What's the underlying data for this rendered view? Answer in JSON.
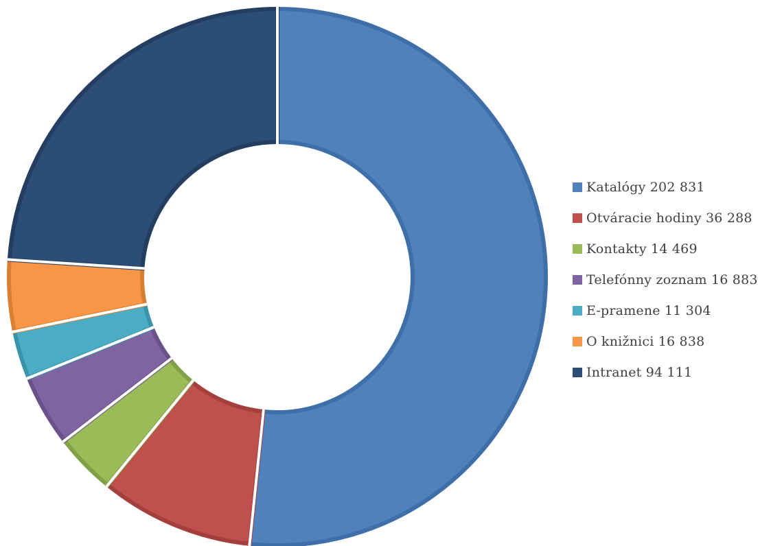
{
  "chart_data": {
    "type": "donut",
    "title": "",
    "legend_position": "right",
    "series": [
      {
        "name": "",
        "points": [
          {
            "label": "Katalógy 202 831",
            "category": "Katalógy",
            "value": 202831,
            "color": "#4F81BD",
            "edge": "#3F6FA8"
          },
          {
            "label": "Otváracie hodiny 36 288",
            "category": "Otváracie hodiny",
            "value": 36288,
            "color": "#C0504D",
            "edge": "#A43F3C"
          },
          {
            "label": "Kontakty 14 469",
            "category": "Kontakty",
            "value": 14469,
            "color": "#9BBB59",
            "edge": "#82A047"
          },
          {
            "label": "Telefónny zoznam 16 883",
            "category": "Telefónny zoznam",
            "value": 16883,
            "color": "#8064A2",
            "edge": "#6A5189"
          },
          {
            "label": "E-pramene 11 304",
            "category": "E-pramene",
            "value": 11304,
            "color": "#4BACC6",
            "edge": "#3993AB"
          },
          {
            "label": "O knižnici 16 838",
            "category": "O knižnici",
            "value": 16838,
            "color": "#F79646",
            "edge": "#D97F33"
          },
          {
            "label": "Intranet 94 111",
            "category": "Intranet",
            "value": 94111,
            "color": "#2C4D75",
            "edge": "#233E60"
          }
        ]
      }
    ]
  }
}
